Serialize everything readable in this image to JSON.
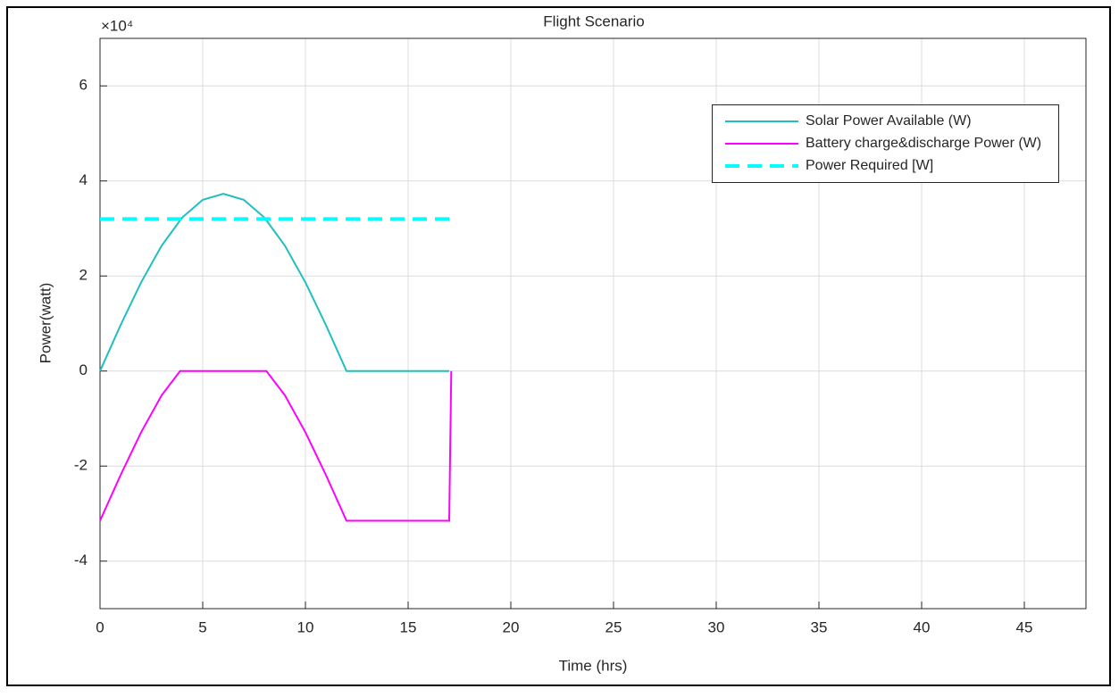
{
  "chart_data": {
    "type": "line",
    "title": "Flight Scenario",
    "xlabel": "Time (hrs)",
    "ylabel": "Power(watt)",
    "y_multiplier": "×10⁴",
    "xlim": [
      0,
      48
    ],
    "xticks": [
      0,
      5,
      10,
      15,
      20,
      25,
      30,
      35,
      40,
      45
    ],
    "ylim": [
      -5,
      7
    ],
    "yticks": [
      -4,
      -2,
      0,
      2,
      4,
      6
    ],
    "grid": true,
    "legend": "northeast",
    "series": [
      {
        "name": "Solar Power Available (W)",
        "color": "#1fbfbf",
        "style": "solid",
        "x": [
          0,
          1,
          2,
          3,
          4,
          5,
          6,
          7,
          8,
          9,
          10,
          11,
          12,
          17
        ],
        "values": [
          0,
          0.965,
          1.865,
          2.638,
          3.23,
          3.603,
          3.73,
          3.603,
          3.23,
          2.638,
          1.865,
          0.965,
          0,
          0
        ]
      },
      {
        "name": "Battery charge&discharge Power (W)",
        "color": "#ff00ff",
        "style": "solid",
        "x": [
          0,
          1,
          2,
          3,
          3.9,
          8.1,
          9,
          10,
          11,
          12,
          17,
          17.1
        ],
        "values": [
          -3.15,
          -2.19,
          -1.29,
          -0.51,
          0,
          0,
          -0.51,
          -1.29,
          -2.19,
          -3.15,
          -3.15,
          0
        ]
      },
      {
        "name": "Power Required [W]",
        "color": "#00ffff",
        "style": "dashed",
        "x": [
          0,
          17
        ],
        "values": [
          3.2,
          3.2
        ]
      }
    ]
  }
}
